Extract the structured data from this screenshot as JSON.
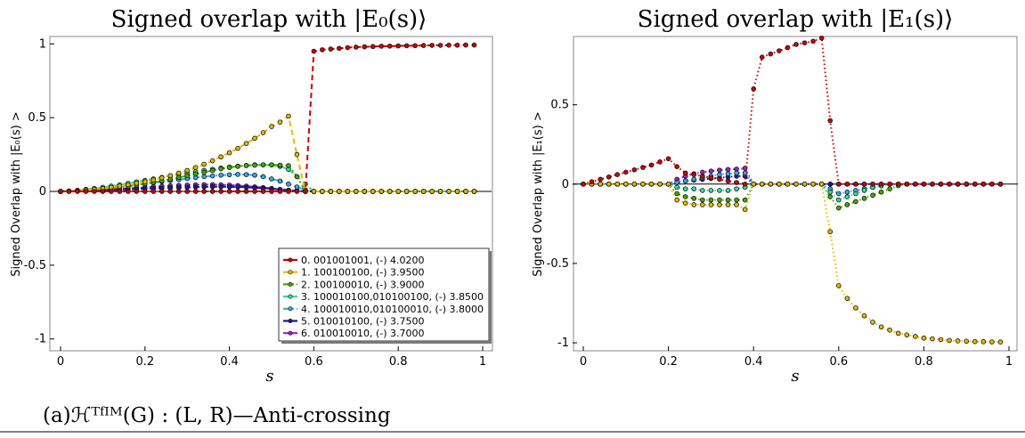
{
  "caption": "(a)ℋᵀᶠᴵᴹ(G) : (L, R)—Anti-crossing",
  "chart_data": [
    {
      "type": "line",
      "title": "Signed overlap with |E₀(s)⟩",
      "xlabel": "s",
      "ylabel": "Signed Overlap with |E₀(s) >",
      "xlim": [
        0,
        1
      ],
      "ylim": [
        -1.08,
        1.05
      ],
      "xticks": [
        "0",
        "0.2",
        "0.4",
        "0.6",
        "0.8",
        "1"
      ],
      "yticks": [
        "1",
        "0.5",
        "0",
        "-0.5",
        "-1"
      ],
      "grid": false,
      "legend_position": "lower-right",
      "x": [
        0,
        0.02,
        0.04,
        0.06,
        0.08,
        0.1,
        0.12,
        0.14,
        0.16,
        0.18,
        0.2,
        0.22,
        0.24,
        0.26,
        0.28,
        0.3,
        0.32,
        0.34,
        0.36,
        0.38,
        0.4,
        0.42,
        0.44,
        0.46,
        0.48,
        0.5,
        0.52,
        0.54,
        0.56,
        0.58,
        0.6,
        0.62,
        0.64,
        0.66,
        0.68,
        0.7,
        0.72,
        0.74,
        0.76,
        0.78,
        0.8,
        0.82,
        0.84,
        0.86,
        0.88,
        0.9,
        0.92,
        0.94,
        0.96,
        0.98
      ],
      "series": [
        {
          "name": "0. 001001001, (-) 4.0200",
          "color": "#cc0000",
          "dash": "dashed",
          "values": [
            0,
            0,
            0,
            0,
            0,
            0,
            0,
            0,
            0,
            0,
            0,
            0,
            0,
            0,
            0,
            0,
            0,
            0,
            0,
            0,
            0,
            0,
            0,
            0,
            0,
            0,
            0,
            0,
            0,
            0,
            0.95,
            0.96,
            0.965,
            0.97,
            0.975,
            0.978,
            0.98,
            0.982,
            0.984,
            0.985,
            0.986,
            0.987,
            0.988,
            0.989,
            0.99,
            0.99,
            0.991,
            0.991,
            0.992,
            0.992
          ]
        },
        {
          "name": "1. 100100100, (-) 3.9500",
          "color": "#e6b800",
          "dash": "dashed",
          "values": [
            0,
            0.002,
            0.005,
            0.01,
            0.015,
            0.02,
            0.028,
            0.036,
            0.045,
            0.055,
            0.066,
            0.078,
            0.092,
            0.107,
            0.124,
            0.142,
            0.162,
            0.184,
            0.208,
            0.234,
            0.262,
            0.292,
            0.325,
            0.36,
            0.398,
            0.44,
            0.47,
            0.51,
            0.25,
            0,
            0,
            0,
            0,
            0,
            0,
            0,
            0,
            0,
            0,
            0,
            0,
            0,
            0,
            0,
            0,
            0,
            0,
            0,
            0,
            0
          ]
        },
        {
          "name": "2. 100100010, (-) 3.9000",
          "color": "#44aa00",
          "dash": "dashdot",
          "values": [
            0,
            0.002,
            0.005,
            0.008,
            0.012,
            0.016,
            0.022,
            0.028,
            0.035,
            0.043,
            0.052,
            0.061,
            0.071,
            0.082,
            0.094,
            0.106,
            0.118,
            0.13,
            0.142,
            0.153,
            0.162,
            0.17,
            0.175,
            0.178,
            0.18,
            0.18,
            0.178,
            0.175,
            0.1,
            0,
            0,
            0,
            0,
            0,
            0,
            0,
            0,
            0,
            0,
            0,
            0,
            0,
            0,
            0,
            0,
            0,
            0,
            0,
            0,
            0
          ]
        },
        {
          "name": "3. 100010100,010100100, (-) 3.8500",
          "color": "#33dd99",
          "dash": "dashed",
          "values": [
            0,
            0.003,
            0.008,
            0.014,
            0.02,
            0.028,
            0.036,
            0.045,
            0.055,
            0.065,
            0.075,
            0.085,
            0.095,
            0.105,
            0.115,
            0.124,
            0.133,
            0.142,
            0.15,
            0.158,
            0.165,
            0.171,
            0.176,
            0.18,
            0.18,
            0.18,
            0.17,
            0.15,
            0.1,
            0.05,
            0,
            0,
            0,
            0,
            0,
            0,
            0,
            0,
            0,
            0,
            0,
            0,
            0,
            0,
            0,
            0,
            0,
            0,
            0,
            0
          ]
        },
        {
          "name": "4. 100010010,010100010, (-) 3.8000",
          "color": "#33aaee",
          "dash": "dashdot",
          "values": [
            0,
            0.002,
            0.006,
            0.01,
            0.015,
            0.02,
            0.026,
            0.032,
            0.038,
            0.045,
            0.052,
            0.059,
            0.066,
            0.073,
            0.08,
            0.087,
            0.094,
            0.1,
            0.105,
            0.11,
            0.113,
            0.115,
            0.114,
            0.11,
            0.1,
            0.085,
            0.07,
            0.05,
            0.03,
            0.01,
            0,
            0,
            0,
            0,
            0,
            0,
            0,
            0,
            0,
            0,
            0,
            0,
            0,
            0,
            0,
            0,
            0,
            0,
            0,
            0
          ]
        },
        {
          "name": "5. 010010100, (-) 3.7500",
          "color": "#1a1a99",
          "dash": "dashed",
          "values": [
            0,
            0.001,
            0.002,
            0.004,
            0.006,
            0.008,
            0.01,
            0.012,
            0.014,
            0.016,
            0.018,
            0.02,
            0.022,
            0.024,
            0.026,
            0.028,
            0.03,
            0.031,
            0.032,
            0.032,
            0.031,
            0.03,
            0.028,
            0.025,
            0.022,
            0.018,
            0.013,
            0.008,
            0.004,
            0.001,
            0,
            0,
            0,
            0,
            0,
            0,
            0,
            0,
            0,
            0,
            0,
            0,
            0,
            0,
            0,
            0,
            0,
            0,
            0,
            0
          ]
        },
        {
          "name": "6. 010010010, (-) 3.7000",
          "color": "#9922cc",
          "dash": "dashed",
          "values": [
            0,
            0.001,
            0.003,
            0.005,
            0.008,
            0.011,
            0.014,
            0.017,
            0.02,
            0.024,
            0.028,
            0.032,
            0.035,
            0.038,
            0.041,
            0.043,
            0.045,
            0.046,
            0.046,
            0.045,
            0.043,
            0.04,
            0.036,
            0.031,
            0.026,
            0.02,
            0.014,
            0.008,
            0.004,
            0.001,
            0,
            0,
            0,
            0,
            0,
            0,
            0,
            0,
            0,
            0,
            0,
            0,
            0,
            0,
            0,
            0,
            0,
            0,
            0,
            0
          ]
        }
      ]
    },
    {
      "type": "line",
      "title": "Signed overlap with |E₁(s)⟩",
      "xlabel": "s",
      "ylabel": "Signed Overlap with |E₁(s) >",
      "xlim": [
        0,
        1
      ],
      "ylim": [
        -1.05,
        0.93
      ],
      "xticks": [
        "0",
        "0.2",
        "0.4",
        "0.6",
        "0.8",
        "1"
      ],
      "yticks": [
        "0.5",
        "0",
        "-0.5",
        "-1"
      ],
      "grid": false,
      "x": [
        0,
        0.02,
        0.04,
        0.06,
        0.08,
        0.1,
        0.12,
        0.14,
        0.16,
        0.18,
        0.2,
        0.22,
        0.24,
        0.26,
        0.28,
        0.3,
        0.32,
        0.34,
        0.36,
        0.38,
        0.4,
        0.42,
        0.44,
        0.46,
        0.48,
        0.5,
        0.52,
        0.54,
        0.56,
        0.58,
        0.6,
        0.62,
        0.64,
        0.66,
        0.68,
        0.7,
        0.72,
        0.74,
        0.76,
        0.78,
        0.8,
        0.82,
        0.84,
        0.86,
        0.88,
        0.9,
        0.92,
        0.94,
        0.96,
        0.98
      ],
      "series": [
        {
          "name": "0",
          "color": "#cc0000",
          "dash": "dotted",
          "values": [
            0,
            0.015,
            0.03,
            0.045,
            0.06,
            0.075,
            0.09,
            0.105,
            0.12,
            0.14,
            0.16,
            0.11,
            0.07,
            0.06,
            0.05,
            0.04,
            0.03,
            0.02,
            0.01,
            0,
            0.6,
            0.8,
            0.82,
            0.84,
            0.86,
            0.88,
            0.89,
            0.9,
            0.92,
            0.4,
            0,
            0,
            0,
            0,
            0,
            0,
            0,
            0,
            0,
            0,
            0,
            0,
            0,
            0,
            0,
            0,
            0,
            0,
            0,
            0
          ]
        },
        {
          "name": "1",
          "color": "#e6b800",
          "dash": "dotted",
          "values": [
            0,
            0,
            0,
            0,
            0,
            0,
            0,
            0,
            0,
            0,
            0,
            -0.1,
            -0.12,
            -0.13,
            -0.13,
            -0.13,
            -0.13,
            -0.13,
            -0.13,
            -0.16,
            0,
            0,
            0,
            0,
            0,
            0,
            0,
            0,
            0,
            -0.3,
            -0.64,
            -0.72,
            -0.78,
            -0.83,
            -0.87,
            -0.9,
            -0.92,
            -0.94,
            -0.95,
            -0.96,
            -0.97,
            -0.975,
            -0.98,
            -0.985,
            -0.988,
            -0.99,
            -0.992,
            -0.993,
            -0.994,
            -0.995
          ]
        },
        {
          "name": "2",
          "color": "#44aa00",
          "dash": "dotted",
          "values": [
            0,
            0,
            0,
            0,
            0,
            0,
            0,
            0,
            0,
            0,
            0,
            -0.06,
            -0.08,
            -0.09,
            -0.1,
            -0.1,
            -0.1,
            -0.1,
            -0.1,
            -0.1,
            0,
            0,
            0,
            0,
            0,
            0,
            0,
            0,
            0,
            -0.08,
            -0.15,
            -0.13,
            -0.11,
            -0.09,
            -0.07,
            -0.05,
            -0.03,
            -0.01,
            0,
            0,
            0,
            0,
            0,
            0,
            0,
            0,
            0,
            0,
            0,
            0
          ]
        },
        {
          "name": "3",
          "color": "#33dd99",
          "dash": "dotted",
          "values": [
            0,
            0,
            0,
            0,
            0,
            0,
            0,
            0,
            0,
            0,
            0,
            -0.02,
            -0.03,
            -0.03,
            -0.04,
            -0.04,
            -0.04,
            -0.04,
            -0.03,
            -0.02,
            0,
            0,
            0,
            0,
            0,
            0,
            0,
            0,
            0,
            -0.05,
            -0.1,
            -0.08,
            -0.06,
            -0.04,
            -0.02,
            -0.01,
            0,
            0,
            0,
            0,
            0,
            0,
            0,
            0,
            0,
            0,
            0,
            0,
            0,
            0
          ]
        },
        {
          "name": "4",
          "color": "#33aaee",
          "dash": "dotted",
          "values": [
            0,
            0,
            0,
            0,
            0,
            0,
            0,
            0,
            0,
            0,
            0,
            0.01,
            0.02,
            0.03,
            0.04,
            0.05,
            0.06,
            0.065,
            0.07,
            0.07,
            0,
            0,
            0,
            0,
            0,
            0,
            0,
            0,
            0,
            -0.03,
            -0.06,
            -0.05,
            -0.04,
            -0.03,
            -0.02,
            -0.01,
            0,
            0,
            0,
            0,
            0,
            0,
            0,
            0,
            0,
            0,
            0,
            0,
            0,
            0
          ]
        },
        {
          "name": "5",
          "color": "#1a1a99",
          "dash": "dotted",
          "values": [
            0,
            0,
            0,
            0,
            0,
            0,
            0,
            0,
            0,
            0,
            0,
            0.01,
            0.02,
            0.025,
            0.03,
            0.035,
            0.04,
            0.045,
            0.05,
            0.05,
            0,
            0,
            0,
            0,
            0,
            0,
            0,
            0,
            0,
            0,
            0,
            0,
            0,
            0,
            0,
            0,
            0,
            0,
            0,
            0,
            0,
            0,
            0,
            0,
            0,
            0,
            0,
            0,
            0,
            0
          ]
        },
        {
          "name": "6",
          "color": "#9922cc",
          "dash": "dotted",
          "values": [
            0,
            0,
            0,
            0,
            0,
            0,
            0,
            0,
            0,
            0,
            0,
            0.03,
            0.05,
            0.065,
            0.075,
            0.082,
            0.088,
            0.092,
            0.095,
            0.1,
            0,
            0,
            0,
            0,
            0,
            0,
            0,
            0,
            0,
            0,
            0,
            0,
            0,
            0,
            0,
            0,
            0,
            0,
            0,
            0,
            0,
            0,
            0,
            0,
            0,
            0,
            0,
            0,
            0,
            0
          ]
        }
      ]
    }
  ]
}
